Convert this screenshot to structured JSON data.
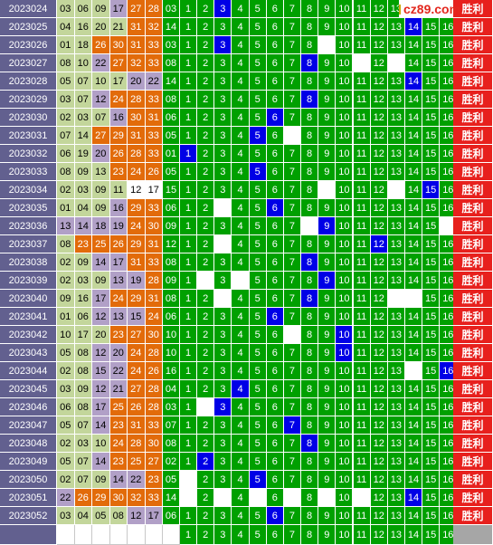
{
  "site_logo": {
    "text": "cz89.com",
    "mark_color": "#ffe000",
    "text_color": "#e3281e"
  },
  "result_label": "胜利",
  "colors": {
    "issue_bg": "#62608f",
    "olive": "#c3d69b",
    "lavender": "#b1a0c7",
    "orange": "#e26b0a",
    "green": "#00a000",
    "highlight_blue": "#0000e6",
    "blank": "#ffffff",
    "result_red": "#e7201d",
    "result_gray": "#a6a6a6"
  },
  "rows": [
    {
      "issue": "2023024",
      "nums": [
        "03",
        "06",
        "09",
        "17",
        "27",
        "28"
      ],
      "cols": [
        "o",
        "o",
        "o",
        "l",
        "r",
        "r"
      ],
      "blue": "03",
      "hit": 3,
      "blank": [],
      "result": "胜利"
    },
    {
      "issue": "2023025",
      "nums": [
        "04",
        "16",
        "20",
        "21",
        "31",
        "32"
      ],
      "cols": [
        "o",
        "o",
        "o",
        "o",
        "r",
        "r"
      ],
      "blue": "14",
      "hit": 14,
      "blank": [],
      "result": "胜利"
    },
    {
      "issue": "2023026",
      "nums": [
        "01",
        "18",
        "26",
        "30",
        "31",
        "33"
      ],
      "cols": [
        "o",
        "o",
        "r",
        "r",
        "r",
        "r"
      ],
      "blue": "03",
      "hit": 3,
      "blank": [
        9
      ],
      "result": "胜利"
    },
    {
      "issue": "2023027",
      "nums": [
        "08",
        "10",
        "22",
        "27",
        "32",
        "33"
      ],
      "cols": [
        "o",
        "o",
        "l",
        "r",
        "r",
        "r"
      ],
      "blue": "08",
      "hit": 8,
      "blank": [
        11,
        13
      ],
      "result": "胜利"
    },
    {
      "issue": "2023028",
      "nums": [
        "05",
        "07",
        "10",
        "17",
        "20",
        "22"
      ],
      "cols": [
        "o",
        "o",
        "o",
        "o",
        "l",
        "l"
      ],
      "blue": "14",
      "hit": 14,
      "blank": [],
      "result": "胜利"
    },
    {
      "issue": "2023029",
      "nums": [
        "03",
        "07",
        "12",
        "24",
        "28",
        "33"
      ],
      "cols": [
        "o",
        "o",
        "l",
        "r",
        "r",
        "r"
      ],
      "blue": "08",
      "hit": 8,
      "blank": [],
      "result": "胜利"
    },
    {
      "issue": "2023030",
      "nums": [
        "02",
        "03",
        "07",
        "16",
        "30",
        "31"
      ],
      "cols": [
        "o",
        "o",
        "o",
        "l",
        "r",
        "r"
      ],
      "blue": "06",
      "hit": 6,
      "blank": [],
      "result": "胜利"
    },
    {
      "issue": "2023031",
      "nums": [
        "07",
        "14",
        "27",
        "29",
        "31",
        "33"
      ],
      "cols": [
        "o",
        "o",
        "r",
        "r",
        "r",
        "r"
      ],
      "blue": "05",
      "hit": 5,
      "blank": [
        7
      ],
      "result": "胜利"
    },
    {
      "issue": "2023032",
      "nums": [
        "06",
        "19",
        "20",
        "26",
        "28",
        "33"
      ],
      "cols": [
        "o",
        "o",
        "l",
        "r",
        "r",
        "r"
      ],
      "blue": "01",
      "hit": 1,
      "blank": [],
      "result": "胜利"
    },
    {
      "issue": "2023033",
      "nums": [
        "08",
        "09",
        "13",
        "23",
        "24",
        "26"
      ],
      "cols": [
        "o",
        "o",
        "o",
        "r",
        "r",
        "r"
      ],
      "blue": "05",
      "hit": 5,
      "blank": [],
      "result": "胜利"
    },
    {
      "issue": "2023034",
      "nums": [
        "02",
        "03",
        "09",
        "11",
        "12",
        "17"
      ],
      "cols": [
        "o",
        "o",
        "o",
        "o",
        "w",
        "w"
      ],
      "blue": "15",
      "hit": 15,
      "blank": [
        9,
        13
      ],
      "result": "胜利"
    },
    {
      "issue": "2023035",
      "nums": [
        "01",
        "04",
        "09",
        "16",
        "29",
        "33"
      ],
      "cols": [
        "o",
        "o",
        "o",
        "l",
        "r",
        "r"
      ],
      "blue": "06",
      "hit": 6,
      "blank": [
        3
      ],
      "result": "胜利"
    },
    {
      "issue": "2023036",
      "nums": [
        "13",
        "14",
        "18",
        "19",
        "24",
        "30"
      ],
      "cols": [
        "l",
        "l",
        "l",
        "l",
        "r",
        "r"
      ],
      "blue": "09",
      "hit": 9,
      "blank": [
        8,
        16
      ],
      "result": "胜利"
    },
    {
      "issue": "2023037",
      "nums": [
        "08",
        "23",
        "25",
        "26",
        "29",
        "31"
      ],
      "cols": [
        "o",
        "r",
        "r",
        "r",
        "r",
        "r"
      ],
      "blue": "12",
      "hit": 12,
      "blank": [
        3
      ],
      "result": "胜利"
    },
    {
      "issue": "2023038",
      "nums": [
        "02",
        "09",
        "14",
        "17",
        "31",
        "33"
      ],
      "cols": [
        "o",
        "o",
        "l",
        "l",
        "r",
        "r"
      ],
      "blue": "08",
      "hit": 8,
      "blank": [],
      "result": "胜利"
    },
    {
      "issue": "2023039",
      "nums": [
        "02",
        "03",
        "09",
        "13",
        "19",
        "28"
      ],
      "cols": [
        "o",
        "o",
        "o",
        "l",
        "l",
        "r"
      ],
      "blue": "09",
      "hit": 9,
      "blank": [
        2,
        4
      ],
      "result": "胜利"
    },
    {
      "issue": "2023040",
      "nums": [
        "09",
        "16",
        "17",
        "24",
        "29",
        "31"
      ],
      "cols": [
        "o",
        "o",
        "l",
        "r",
        "r",
        "r"
      ],
      "blue": "08",
      "hit": 8,
      "blank": [
        3,
        13,
        14
      ],
      "result": "胜利"
    },
    {
      "issue": "2023041",
      "nums": [
        "01",
        "06",
        "12",
        "13",
        "15",
        "24"
      ],
      "cols": [
        "o",
        "o",
        "l",
        "l",
        "l",
        "r"
      ],
      "blue": "06",
      "hit": 6,
      "blank": [],
      "result": "胜利"
    },
    {
      "issue": "2023042",
      "nums": [
        "10",
        "17",
        "20",
        "23",
        "27",
        "30"
      ],
      "cols": [
        "o",
        "o",
        "o",
        "r",
        "r",
        "r"
      ],
      "blue": "10",
      "hit": 10,
      "blank": [
        7
      ],
      "result": "胜利"
    },
    {
      "issue": "2023043",
      "nums": [
        "05",
        "08",
        "12",
        "20",
        "24",
        "28"
      ],
      "cols": [
        "o",
        "o",
        "l",
        "l",
        "r",
        "r"
      ],
      "blue": "10",
      "hit": 10,
      "blank": [],
      "result": "胜利"
    },
    {
      "issue": "2023044",
      "nums": [
        "02",
        "08",
        "15",
        "22",
        "24",
        "26"
      ],
      "cols": [
        "o",
        "o",
        "l",
        "l",
        "r",
        "r"
      ],
      "blue": "16",
      "hit": 16,
      "blank": [
        14
      ],
      "result": "胜利"
    },
    {
      "issue": "2023045",
      "nums": [
        "03",
        "09",
        "12",
        "21",
        "27",
        "28"
      ],
      "cols": [
        "o",
        "o",
        "l",
        "l",
        "r",
        "r"
      ],
      "blue": "04",
      "hit": 4,
      "blank": [],
      "result": "胜利"
    },
    {
      "issue": "2023046",
      "nums": [
        "06",
        "08",
        "17",
        "25",
        "26",
        "28"
      ],
      "cols": [
        "o",
        "o",
        "l",
        "r",
        "r",
        "r"
      ],
      "blue": "03",
      "hit": 3,
      "blank": [
        2
      ],
      "result": "胜利"
    },
    {
      "issue": "2023047",
      "nums": [
        "05",
        "07",
        "14",
        "23",
        "31",
        "33"
      ],
      "cols": [
        "o",
        "o",
        "l",
        "r",
        "r",
        "r"
      ],
      "blue": "07",
      "hit": 7,
      "blank": [],
      "result": "胜利"
    },
    {
      "issue": "2023048",
      "nums": [
        "02",
        "03",
        "10",
        "24",
        "28",
        "30"
      ],
      "cols": [
        "o",
        "o",
        "o",
        "r",
        "r",
        "r"
      ],
      "blue": "08",
      "hit": 8,
      "blank": [],
      "result": "胜利"
    },
    {
      "issue": "2023049",
      "nums": [
        "05",
        "07",
        "14",
        "23",
        "25",
        "27"
      ],
      "cols": [
        "o",
        "o",
        "l",
        "r",
        "r",
        "r"
      ],
      "blue": "02",
      "hit": 2,
      "blank": [],
      "result": "胜利"
    },
    {
      "issue": "2023050",
      "nums": [
        "02",
        "07",
        "09",
        "14",
        "22",
        "23"
      ],
      "cols": [
        "o",
        "o",
        "o",
        "l",
        "l",
        "r"
      ],
      "blue": "05",
      "hit": 5,
      "blank": [
        1
      ],
      "result": "胜利"
    },
    {
      "issue": "2023051",
      "nums": [
        "22",
        "26",
        "29",
        "30",
        "32",
        "33"
      ],
      "cols": [
        "l",
        "r",
        "r",
        "r",
        "r",
        "r"
      ],
      "blue": "14",
      "hit": 14,
      "blank": [
        1,
        3,
        5,
        7,
        9,
        11
      ],
      "result": "胜利"
    },
    {
      "issue": "2023052",
      "nums": [
        "03",
        "04",
        "05",
        "08",
        "12",
        "17"
      ],
      "cols": [
        "o",
        "o",
        "o",
        "o",
        "l",
        "l"
      ],
      "blue": "06",
      "hit": 6,
      "blank": [],
      "result": "胜利"
    }
  ],
  "footer_row": {
    "issue": "",
    "result": ""
  }
}
